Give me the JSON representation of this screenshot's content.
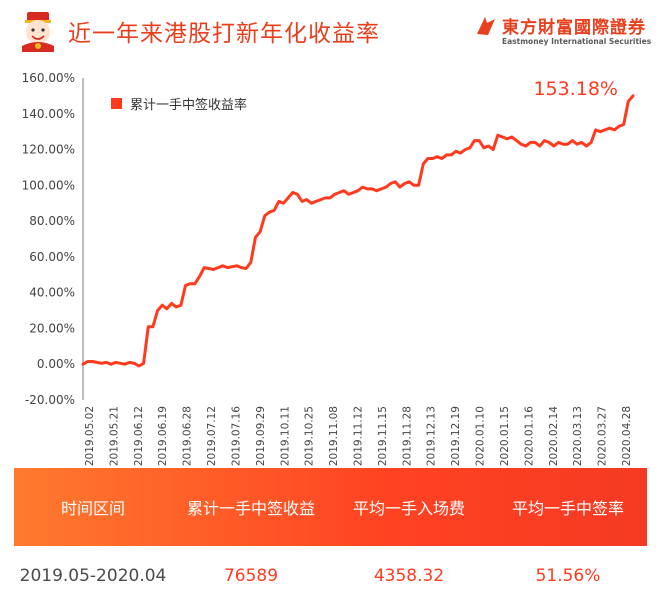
{
  "header": {
    "title": "近一年来港股打新年化收益率",
    "brand_cn": "東方財富國際證券",
    "brand_en": "Eastmoney International Securities"
  },
  "colors": {
    "accent": "#e8401f",
    "line": "#ff3b1f",
    "axis": "#777777"
  },
  "chart_data": {
    "type": "line",
    "title": "",
    "xlabel": "",
    "ylabel": "",
    "ylim": [
      -20,
      160
    ],
    "yticks": [
      -20,
      0,
      20,
      40,
      60,
      80,
      100,
      120,
      140,
      160
    ],
    "ytick_labels": [
      "-20.00%",
      "0.00%",
      "20.00%",
      "40.00%",
      "60.00%",
      "80.00%",
      "100.00%",
      "120.00%",
      "140.00%",
      "160.00%"
    ],
    "xtick_labels": [
      "2019.05.02",
      "2019.05.21",
      "2019.06.12",
      "2019.06.19",
      "2019.06.28",
      "2019.07.12",
      "2019.07.16",
      "2019.09.29",
      "2019.10.11",
      "2019.10.25",
      "2019.11.08",
      "2019.11.12",
      "2019.11.15",
      "2019.11.28",
      "2019.12.13",
      "2019.12.19",
      "2020.01.10",
      "2020.01.15",
      "2020.01.16",
      "2020.02.14",
      "2020.03.13",
      "2020.03.27",
      "2020.04.28"
    ],
    "legend_position": "top-left",
    "annotation": "153.18%",
    "series": [
      {
        "name": "累计一手中签收益率",
        "values": [
          0,
          1.5,
          1.5,
          1.0,
          0.5,
          1.0,
          0.0,
          1.0,
          0.5,
          0.0,
          1.0,
          0.5,
          -1.0,
          0.5,
          21,
          21,
          30,
          33,
          31,
          34,
          32,
          33,
          44,
          45,
          45,
          49,
          54,
          53.5,
          53,
          54,
          55,
          54,
          54.5,
          55,
          54,
          53.5,
          57,
          71,
          74,
          83,
          85,
          86,
          91,
          90,
          93,
          96,
          95,
          91,
          92,
          90,
          91,
          92,
          93,
          93,
          95,
          96,
          97,
          95,
          96,
          97,
          99,
          98,
          98,
          97,
          98,
          99,
          101,
          102,
          99,
          101,
          102,
          100,
          100,
          112,
          115,
          115,
          116,
          115,
          117,
          117,
          119,
          118,
          120,
          121,
          125,
          125,
          121,
          122,
          120,
          128,
          127,
          126,
          127,
          125,
          123,
          122,
          124,
          124,
          122,
          125,
          124,
          122,
          124,
          123,
          123,
          125,
          123,
          124,
          122,
          124,
          131,
          130,
          131,
          132,
          131,
          133,
          134,
          147,
          150
        ]
      }
    ]
  },
  "table": {
    "headers": [
      "时间区间",
      "累计一手中签收益",
      "平均一手入场费",
      "平均一手中签率"
    ],
    "values": [
      "2019.05-2020.04",
      "76589",
      "4358.32",
      "51.56%"
    ]
  }
}
